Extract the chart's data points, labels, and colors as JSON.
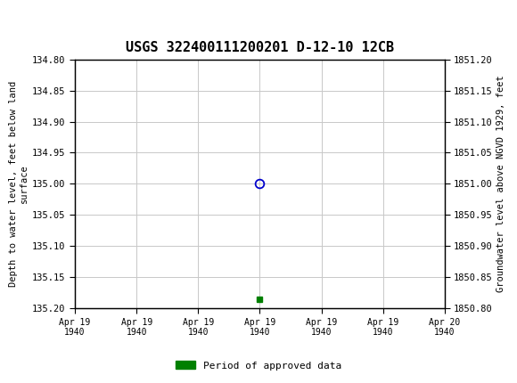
{
  "title": "USGS 322400111200201 D-12-10 12CB",
  "xlabel_dates": [
    "Apr 19\n1940",
    "Apr 19\n1940",
    "Apr 19\n1940",
    "Apr 19\n1940",
    "Apr 19\n1940",
    "Apr 19\n1940",
    "Apr 20\n1940"
  ],
  "ylabel_left": "Depth to water level, feet below land\nsurface",
  "ylabel_right": "Groundwater level above NGVD 1929, feet",
  "ylim_left": [
    135.2,
    134.8
  ],
  "ylim_right": [
    1850.8,
    1851.2
  ],
  "yticks_left": [
    134.8,
    134.85,
    134.9,
    134.95,
    135.0,
    135.05,
    135.1,
    135.15,
    135.2
  ],
  "yticks_right": [
    1851.2,
    1851.15,
    1851.1,
    1851.05,
    1851.0,
    1850.95,
    1850.9,
    1850.85,
    1850.8
  ],
  "data_point_x": 3.0,
  "data_point_y": 135.0,
  "data_point_color": "#0000cc",
  "green_bar_x": 3.0,
  "green_bar_y": 135.185,
  "green_color": "#008000",
  "header_bg_color": "#1a6b3c",
  "legend_label": "Period of approved data",
  "bg_color": "#ffffff",
  "grid_color": "#c8c8c8",
  "tick_label_color": "#000000",
  "font_size_title": 11,
  "font_size_axis": 7.5,
  "font_size_tick": 7.5,
  "font_size_legend": 8,
  "x_num_ticks": 7,
  "x_range": [
    0,
    6
  ]
}
